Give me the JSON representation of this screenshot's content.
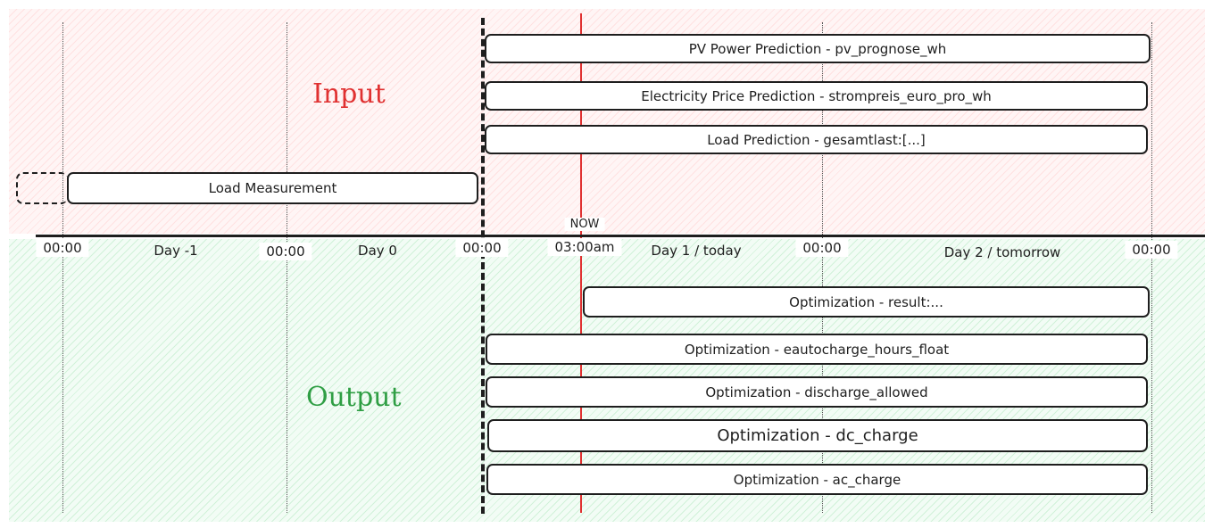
{
  "sections": {
    "input_label": "Input",
    "output_label": "Output"
  },
  "colors": {
    "input": "#e03131",
    "output": "#2f9e44",
    "now_line": "#e03131"
  },
  "input_bars": [
    {
      "label": "PV Power Prediction - pv_prognose_wh"
    },
    {
      "label": "Electricity Price Prediction - strompreis_euro_pro_wh"
    },
    {
      "label": "Load Prediction - gesamtlast:[...]"
    },
    {
      "label": "Load Measurement"
    }
  ],
  "output_bars": [
    {
      "label": "Optimization - result:..."
    },
    {
      "label": "Optimization - eautocharge_hours_float"
    },
    {
      "label": "Optimization - discharge_allowed"
    },
    {
      "label": "Optimization - dc_charge"
    },
    {
      "label": "Optimization - ac_charge"
    }
  ],
  "timeline": {
    "ticks": [
      "00:00",
      "00:00",
      "00:00",
      "00:00",
      "00:00"
    ],
    "days": [
      "Day -1",
      "Day 0",
      "Day 1 / today",
      "Day 2 / tomorrow"
    ],
    "now_label": "NOW",
    "now_time": "03:00am"
  }
}
